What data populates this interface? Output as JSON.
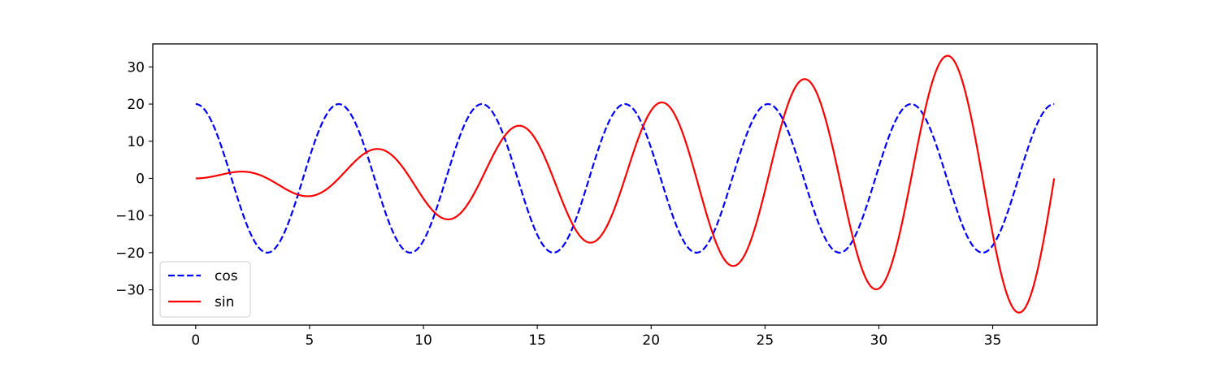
{
  "chart_data": {
    "type": "line",
    "title": "",
    "xlabel": "",
    "ylabel": "",
    "xlim": [
      -1.885,
      39.584
    ],
    "ylim": [
      -39.5,
      36.2
    ],
    "grid": false,
    "legend_placement": "lower-left",
    "x_ticks": [
      0,
      5,
      10,
      15,
      20,
      25,
      30,
      35
    ],
    "x_tick_labels": [
      "0",
      "5",
      "10",
      "15",
      "20",
      "25",
      "30",
      "35"
    ],
    "y_ticks": [
      -30,
      -20,
      -10,
      0,
      10,
      20,
      30
    ],
    "y_tick_labels": [
      "−30",
      "−20",
      "−10",
      "0",
      "10",
      "20",
      "30"
    ],
    "x_range": [
      0,
      37.699
    ],
    "series": [
      {
        "name": "cos",
        "style": "dashed",
        "color": "#0000ff",
        "formula": "20*cos(x)",
        "key_points": [
          [
            0,
            20
          ],
          [
            3.14,
            -20
          ],
          [
            6.28,
            20
          ],
          [
            9.42,
            -20
          ],
          [
            12.57,
            20
          ],
          [
            15.71,
            -20
          ],
          [
            18.85,
            20
          ],
          [
            21.99,
            -20
          ],
          [
            25.13,
            20
          ],
          [
            28.27,
            -20
          ],
          [
            31.42,
            20
          ],
          [
            34.56,
            -20
          ],
          [
            37.7,
            20
          ]
        ]
      },
      {
        "name": "sin",
        "style": "solid",
        "color": "#ff0000",
        "formula": "x*sin(x)",
        "key_points": [
          [
            0,
            0
          ],
          [
            2.03,
            1.8
          ],
          [
            4.91,
            -4.8
          ],
          [
            7.98,
            7.9
          ],
          [
            11.09,
            -11.0
          ],
          [
            14.21,
            14.2
          ],
          [
            17.34,
            -17.3
          ],
          [
            20.47,
            20.4
          ],
          [
            23.61,
            -23.6
          ],
          [
            26.75,
            26.7
          ],
          [
            29.88,
            -29.9
          ],
          [
            33.02,
            33.0
          ],
          [
            36.16,
            -36.2
          ],
          [
            37.7,
            0
          ]
        ]
      }
    ],
    "legend": [
      {
        "label": "cos",
        "color": "#0000ff",
        "style": "dashed"
      },
      {
        "label": "sin",
        "color": "#ff0000",
        "style": "solid"
      }
    ]
  }
}
